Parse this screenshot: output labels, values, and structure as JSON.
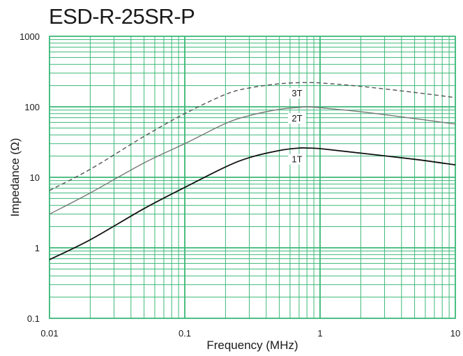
{
  "chart_data": {
    "type": "line",
    "title": "ESD-R-25SR-P",
    "xlabel": "Frequency (MHz)",
    "ylabel": "Impedance (Ω)",
    "x_scale": "log",
    "y_scale": "log",
    "xlim": [
      0.01,
      10
    ],
    "ylim": [
      0.1,
      1000
    ],
    "x_ticks": [
      "0.01",
      "0.1",
      "1",
      "10"
    ],
    "y_ticks": [
      "0.1",
      "1",
      "10",
      "100",
      "1000"
    ],
    "grid": true,
    "grid_color": "#3cb878",
    "series": [
      {
        "name": "3T",
        "style": "dashed",
        "color": "#555555",
        "x": [
          0.01,
          0.02,
          0.05,
          0.1,
          0.2,
          0.3,
          0.5,
          0.7,
          0.8,
          1,
          2,
          5,
          10
        ],
        "y": [
          6.5,
          13,
          38,
          80,
          150,
          185,
          212,
          220,
          220,
          218,
          195,
          160,
          135
        ]
      },
      {
        "name": "2T",
        "style": "solid",
        "color": "#777777",
        "x": [
          0.01,
          0.02,
          0.05,
          0.1,
          0.2,
          0.3,
          0.5,
          0.7,
          0.8,
          1,
          2,
          5,
          10
        ],
        "y": [
          3.0,
          6,
          16,
          30,
          58,
          75,
          92,
          98,
          100,
          97,
          85,
          68,
          57
        ]
      },
      {
        "name": "1T",
        "style": "solid",
        "color": "#111111",
        "x": [
          0.01,
          0.02,
          0.05,
          0.1,
          0.2,
          0.3,
          0.5,
          0.7,
          0.8,
          1,
          2,
          5,
          10
        ],
        "y": [
          0.68,
          1.3,
          3.6,
          7.2,
          14,
          19,
          24,
          26,
          26,
          25.5,
          22,
          18,
          15
        ]
      }
    ]
  }
}
